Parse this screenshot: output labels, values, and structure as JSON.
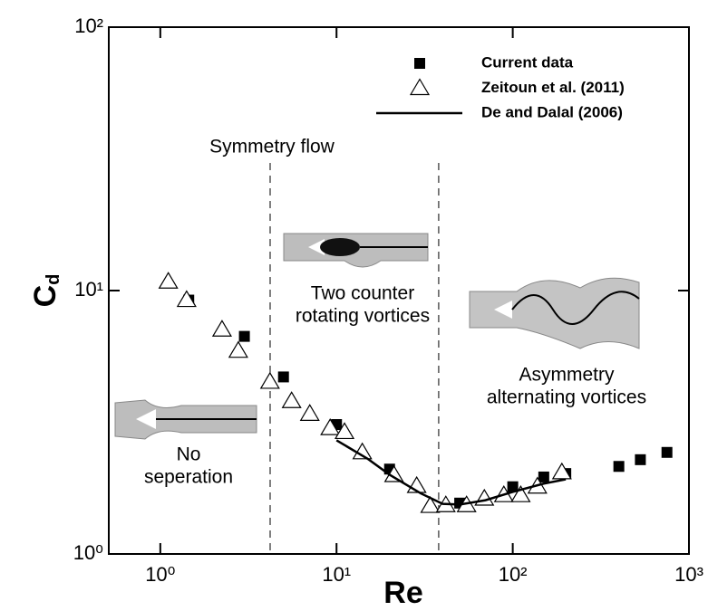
{
  "chart_data": {
    "type": "scatter",
    "xlabel": "Re",
    "ylabel": "C",
    "ylabel_sub": "d",
    "xscale": "log",
    "yscale": "log",
    "xlim": [
      0.51,
      1000
    ],
    "ylim": [
      1,
      100
    ],
    "xticks": [
      {
        "value": 1,
        "label": "10⁰"
      },
      {
        "value": 10,
        "label": "10¹"
      },
      {
        "value": 100,
        "label": "10²"
      },
      {
        "value": 1000,
        "label": "10³"
      }
    ],
    "yticks": [
      {
        "value": 1,
        "label": "10⁰"
      },
      {
        "value": 10,
        "label": "10¹"
      },
      {
        "value": 100,
        "label": "10²"
      }
    ],
    "vlines": [
      4.2,
      38
    ],
    "legend": "upper right",
    "series": [
      {
        "name": "Current data",
        "marker": "square",
        "color": "#000000",
        "x": [
          1.45,
          3,
          5,
          10,
          20,
          50,
          100,
          150,
          200,
          400,
          530,
          750
        ],
        "values": [
          9.2,
          6.7,
          4.7,
          3.1,
          2.1,
          1.56,
          1.8,
          1.96,
          2.02,
          2.15,
          2.28,
          2.43
        ]
      },
      {
        "name": "Zeitoun et al. (2011)",
        "marker": "triangle",
        "color": "#000000",
        "x": [
          1.11,
          1.41,
          2.24,
          2.77,
          4.19,
          5.56,
          7.05,
          9.2,
          11.1,
          14,
          21.2,
          28.5,
          34,
          41.7,
          54.7,
          69,
          89,
          111,
          138,
          190
        ],
        "values": [
          10.8,
          9.2,
          7.1,
          5.9,
          4.5,
          3.8,
          3.4,
          3.0,
          2.9,
          2.43,
          1.99,
          1.81,
          1.52,
          1.53,
          1.53,
          1.62,
          1.67,
          1.67,
          1.8,
          2.04
        ]
      },
      {
        "name": "De and Dalal (2006)",
        "marker": "line",
        "color": "#000000",
        "x": [
          10,
          15,
          20,
          30,
          40,
          50,
          70,
          100,
          150,
          200
        ],
        "values": [
          2.7,
          2.3,
          2.0,
          1.7,
          1.55,
          1.54,
          1.6,
          1.72,
          1.85,
          1.92
        ]
      }
    ],
    "annotations": [
      {
        "lines": [
          "Symmetry flow"
        ]
      },
      {
        "lines": [
          "Two counter",
          "rotating vortices"
        ]
      },
      {
        "lines": [
          "Asymmetry",
          "alternating vortices"
        ]
      },
      {
        "lines": [
          "No",
          "seperation"
        ]
      }
    ]
  }
}
